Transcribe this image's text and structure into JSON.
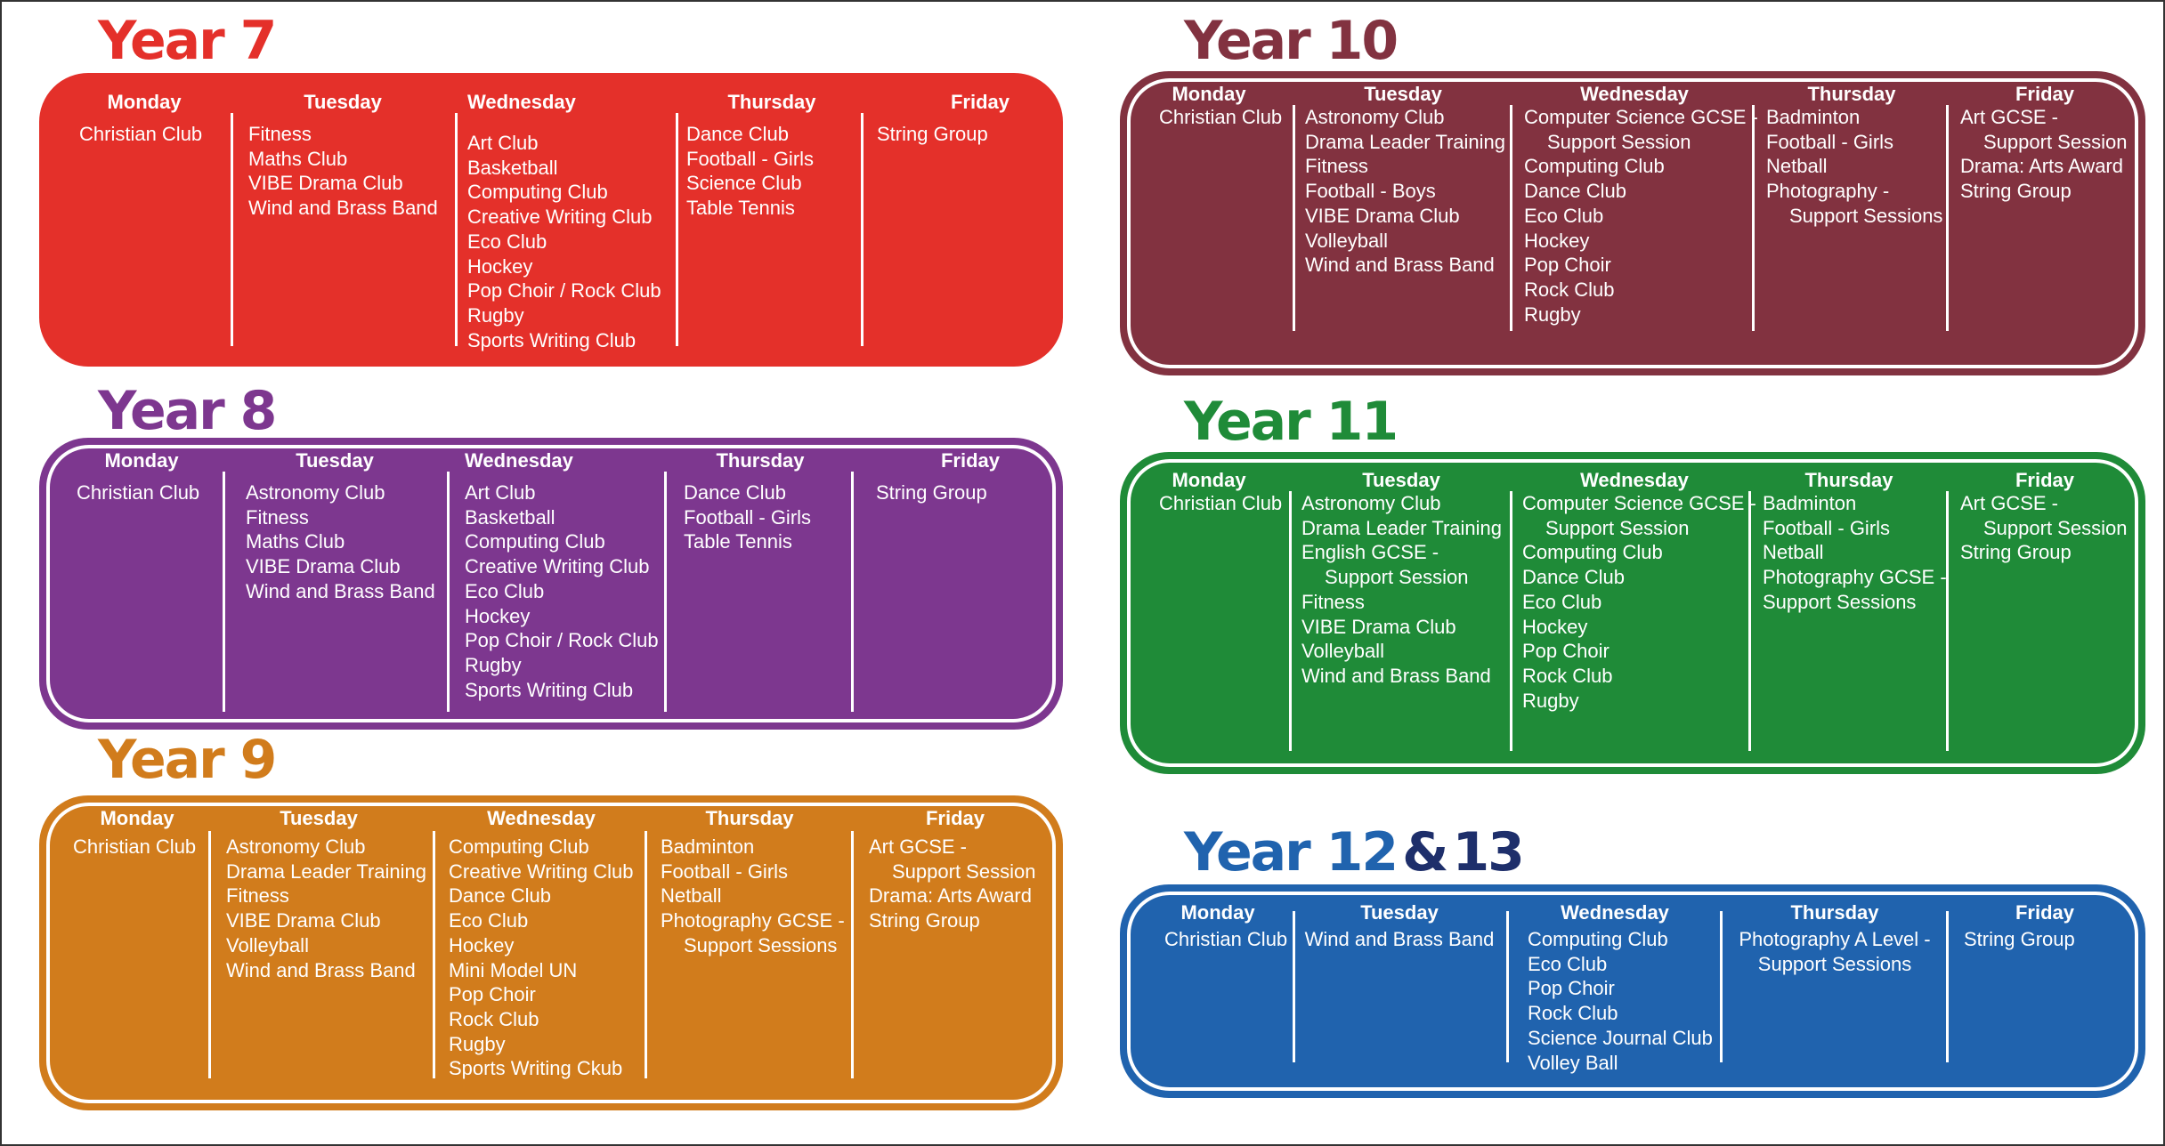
{
  "years": [
    {
      "title": "Year 7",
      "colors": {
        "main": "#e4302a"
      },
      "days": [
        {
          "day": "Monday",
          "clubs": [
            "Christian Club"
          ]
        },
        {
          "day": "Tuesday",
          "clubs": [
            "Fitness",
            "Maths Club",
            "VIBE Drama Club",
            "Wind and Brass Band"
          ]
        },
        {
          "day": "Wednesday",
          "clubs": [
            "Art Club",
            "Basketball",
            "Computing Club",
            "Creative Writing Club",
            "Eco Club",
            "Hockey",
            "Pop Choir / Rock Club",
            "Rugby",
            "Sports Writing Club"
          ]
        },
        {
          "day": "Thursday",
          "clubs": [
            "Dance Club",
            "Football - Girls",
            "Science Club",
            "Table Tennis"
          ]
        },
        {
          "day": "Friday",
          "clubs": [
            "String Group"
          ]
        }
      ]
    },
    {
      "title": "Year 8",
      "colors": {
        "main": "#7d378f"
      },
      "days": [
        {
          "day": "Monday",
          "clubs": [
            "Christian Club"
          ]
        },
        {
          "day": "Tuesday",
          "clubs": [
            "Astronomy Club",
            "Fitness",
            "Maths Club",
            "VIBE Drama Club",
            "Wind and Brass Band"
          ]
        },
        {
          "day": "Wednesday",
          "clubs": [
            "Art Club",
            "Basketball",
            "Computing Club",
            "Creative Writing Club",
            "Eco Club",
            "Hockey",
            "Pop Choir / Rock Club",
            "Rugby",
            "Sports Writing Club"
          ]
        },
        {
          "day": "Thursday",
          "clubs": [
            "Dance Club",
            "Football -  Girls",
            "Table Tennis"
          ]
        },
        {
          "day": "Friday",
          "clubs": [
            "String Group"
          ]
        }
      ]
    },
    {
      "title": "Year 9",
      "colors": {
        "main": "#d17c1c"
      },
      "days": [
        {
          "day": "Monday",
          "clubs": [
            "Christian Club"
          ]
        },
        {
          "day": "Tuesday",
          "clubs": [
            "Astronomy Club",
            "Drama Leader Training",
            "Fitness",
            "VIBE Drama Club",
            "Volleyball",
            "Wind and Brass Band"
          ]
        },
        {
          "day": "Wednesday",
          "clubs": [
            "Computing Club",
            "Creative Writing Club",
            "Dance Club",
            "Eco Club",
            "Hockey",
            "Mini Model UN",
            "Pop Choir",
            "Rock Club",
            "Rugby",
            "Sports Writing Ckub"
          ]
        },
        {
          "day": "Thursday",
          "clubs": [
            "Badminton",
            "Football - Girls",
            "Netball",
            "Photography GCSE -",
            "Support Sessions"
          ]
        },
        {
          "day": "Friday",
          "clubs": [
            "Art GCSE -",
            "Support Session",
            "Drama: Arts Award",
            "String Group"
          ]
        }
      ]
    },
    {
      "title": "Year 10",
      "colors": {
        "main": "#823240"
      },
      "days": [
        {
          "day": "Monday",
          "clubs": [
            "Christian Club"
          ]
        },
        {
          "day": "Tuesday",
          "clubs": [
            "Astronomy Club",
            "Drama Leader Training",
            "Fitness",
            "Football - Boys",
            "VIBE Drama Club",
            "Volleyball",
            "Wind and Brass Band"
          ]
        },
        {
          "day": "Wednesday",
          "clubs": [
            "Computer Science GCSE -",
            "Support Session",
            "Computing Club",
            "Dance Club",
            "Eco Club",
            "Hockey",
            "Pop Choir",
            "Rock Club",
            "Rugby"
          ]
        },
        {
          "day": "Thursday",
          "clubs": [
            "Badminton",
            "Football - Girls",
            "Netball",
            "Photography -",
            "Support Sessions"
          ]
        },
        {
          "day": "Friday",
          "clubs": [
            "Art GCSE  -",
            "Support Session",
            "Drama: Arts Award",
            "String Group"
          ]
        }
      ]
    },
    {
      "title": "Year 11",
      "colors": {
        "main": "#1f8b38"
      },
      "days": [
        {
          "day": "Monday",
          "clubs": [
            "Christian Club"
          ]
        },
        {
          "day": "Tuesday",
          "clubs": [
            "Astronomy Club",
            "Drama Leader  Training",
            "English GCSE -",
            "Support Session",
            "Fitness",
            "VIBE Drama Club",
            "Volleyball",
            "Wind and Brass Band"
          ]
        },
        {
          "day": "Wednesday",
          "clubs": [
            "Computer Science GCSE -",
            "Support Session",
            "Computing Club",
            "Dance Club",
            "Eco Club",
            "Hockey",
            "Pop Choir",
            "Rock Club",
            "Rugby"
          ]
        },
        {
          "day": "Thursday",
          "clubs": [
            "Badminton",
            "Football - Girls",
            "Netball",
            "Photography GCSE -",
            "Support Sessions"
          ]
        },
        {
          "day": "Friday",
          "clubs": [
            "Art GCSE -",
            "Support Session",
            "String Group"
          ]
        }
      ]
    },
    {
      "title": "Year 12",
      "title_amp": "&",
      "title_extra": "13",
      "colors": {
        "main": "#2063ae",
        "title_dark": "#1e2f6b"
      },
      "days": [
        {
          "day": "Monday",
          "clubs": [
            "Christian Club"
          ]
        },
        {
          "day": "Tuesday",
          "clubs": [
            "Wind and Brass Band"
          ]
        },
        {
          "day": "Wednesday",
          "clubs": [
            "Computing Club",
            "Eco Club",
            "Pop Choir",
            "Rock Club",
            "Science Journal Club",
            "Volley Ball"
          ]
        },
        {
          "day": "Thursday",
          "clubs": [
            "Photography A Level -",
            "Support Sessions"
          ]
        },
        {
          "day": "Friday",
          "clubs": [
            "String Group"
          ]
        }
      ]
    }
  ]
}
